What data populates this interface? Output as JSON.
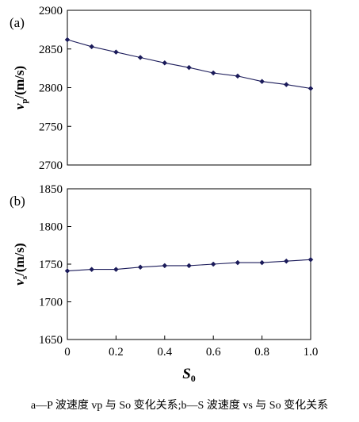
{
  "chart_data": [
    {
      "type": "line",
      "panel_label": "(a)",
      "ylabel": "v_p/(m/s)",
      "x": [
        0,
        0.1,
        0.2,
        0.3,
        0.4,
        0.5,
        0.6,
        0.7,
        0.8,
        0.9,
        1.0
      ],
      "values": [
        2862,
        2853,
        2846,
        2839,
        2832,
        2826,
        2819,
        2815,
        2808,
        2804,
        2799
      ],
      "ylim": [
        2700,
        2900
      ],
      "yticks": [
        "2900",
        "2850",
        "2800",
        "2750",
        "2700"
      ],
      "grid": false,
      "color": "#1b1b5a"
    },
    {
      "type": "line",
      "panel_label": "(b)",
      "ylabel": "v_s/(m/s)",
      "xlabel": "S0",
      "x": [
        0,
        0.1,
        0.2,
        0.3,
        0.4,
        0.5,
        0.6,
        0.7,
        0.8,
        0.9,
        1.0
      ],
      "values": [
        1741,
        1743,
        1743,
        1746,
        1748,
        1748,
        1750,
        1752,
        1752,
        1754,
        1756
      ],
      "ylim": [
        1650,
        1850
      ],
      "yticks": [
        "1850",
        "1800",
        "1750",
        "1700",
        "1650"
      ],
      "xticks": [
        "0",
        "0.2",
        "0.4",
        "0.6",
        "0.8",
        "1.0"
      ],
      "xlim": [
        0,
        1.0
      ],
      "grid": false,
      "color": "#1b1b5a"
    }
  ],
  "caption": "a—P 波速度 vp 与 So 变化关系;b—S 波速度 vs 与 So 变化关系"
}
